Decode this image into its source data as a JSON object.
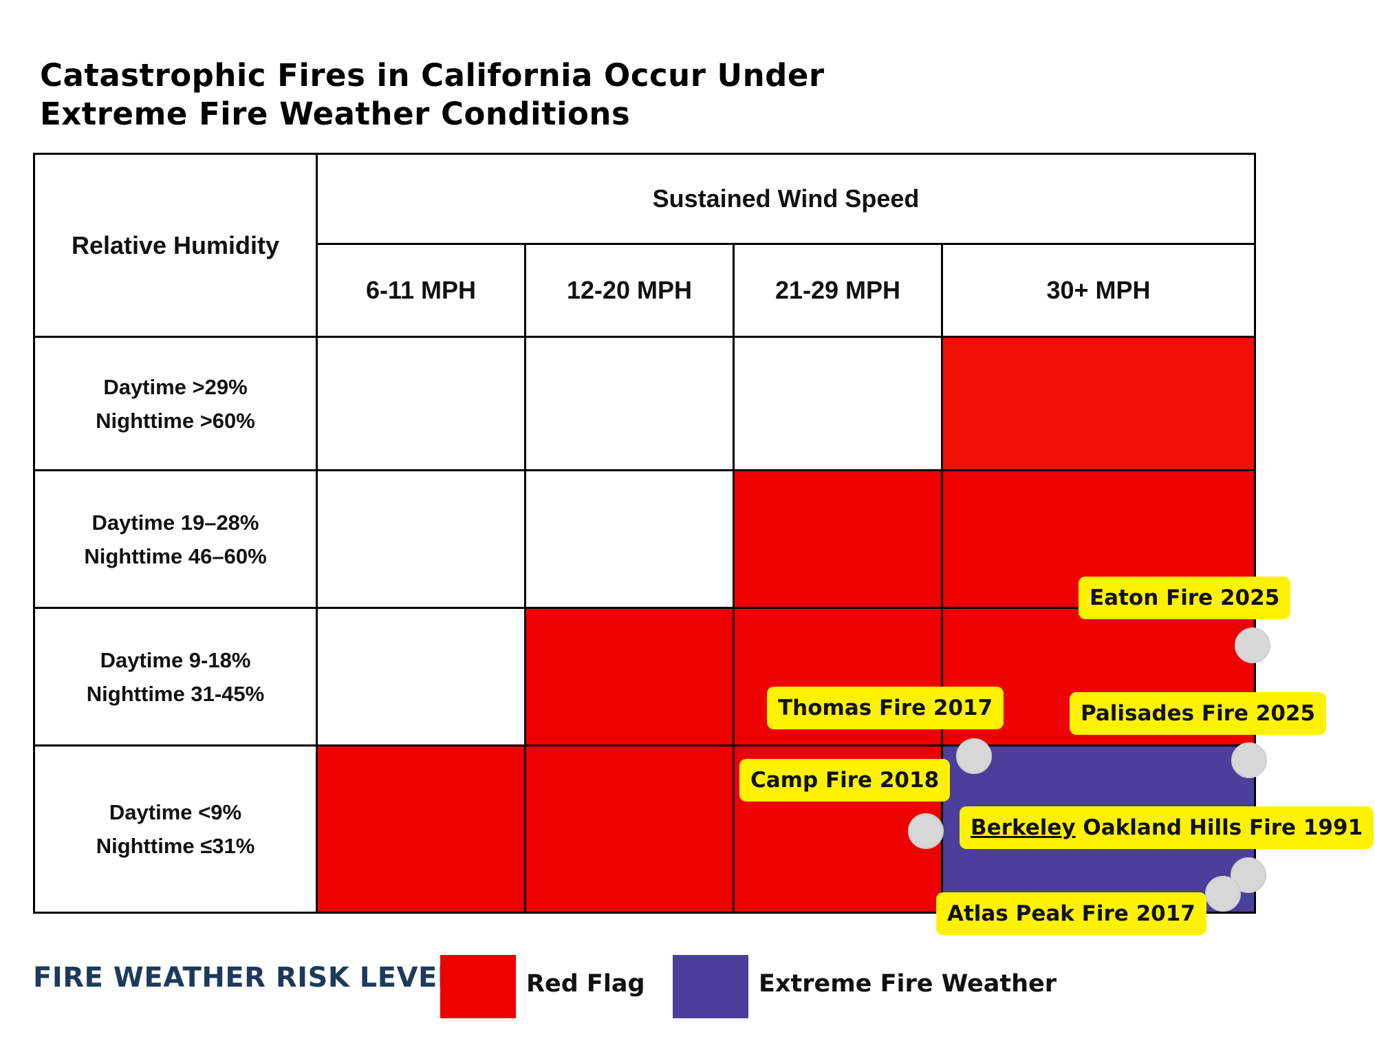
{
  "title_line1": "Catastrophic Fires in California Occur Under",
  "title_line2": "Extreme Fire Weather Conditions",
  "chart_data": {
    "type": "table",
    "corner_label": "Relative Humidity",
    "column_group_label": "Sustained Wind Speed",
    "columns": [
      "6-11 MPH",
      "12-20 MPH",
      "21-29 MPH",
      "30+ MPH"
    ],
    "rows": [
      {
        "daytime": "Daytime >29%",
        "nighttime": "Nighttime >60%",
        "levels": [
          "none",
          "none",
          "none",
          "red_flag"
        ]
      },
      {
        "daytime": "Daytime 19–28%",
        "nighttime": "Nighttime 46–60%",
        "levels": [
          "none",
          "none",
          "red_flag",
          "red_flag"
        ]
      },
      {
        "daytime": "Daytime 9-18%",
        "nighttime": "Nighttime 31-45%",
        "levels": [
          "none",
          "red_flag",
          "red_flag",
          "red_flag"
        ]
      },
      {
        "daytime": "Daytime <9%",
        "nighttime": "Nighttime ≤31%",
        "levels": [
          "red_flag",
          "red_flag",
          "red_flag",
          "extreme"
        ]
      }
    ],
    "fires": [
      {
        "name": "Eaton Fire 2025"
      },
      {
        "name": "Thomas Fire 2017"
      },
      {
        "name": "Palisades Fire 2025"
      },
      {
        "name": "Camp Fire 2018"
      },
      {
        "name_part1": "Berkeley",
        "name_part2": " Oakland Hills Fire 1991"
      },
      {
        "name": "Atlas Peak Fire 2017"
      }
    ]
  },
  "legend": {
    "title": "FIRE WEATHER RISK LEVEL",
    "red_flag_label": "Red Flag",
    "extreme_label": "Extreme Fire Weather"
  },
  "colors": {
    "none": "#ffffff",
    "red_flag": "#ee0000",
    "red_flag_top": "#ef1008",
    "extreme": "#4b3f9c",
    "fire_tag": "#fff200",
    "fire_dot": "#d7d7d7",
    "legend_title": "#1d3a5c"
  }
}
